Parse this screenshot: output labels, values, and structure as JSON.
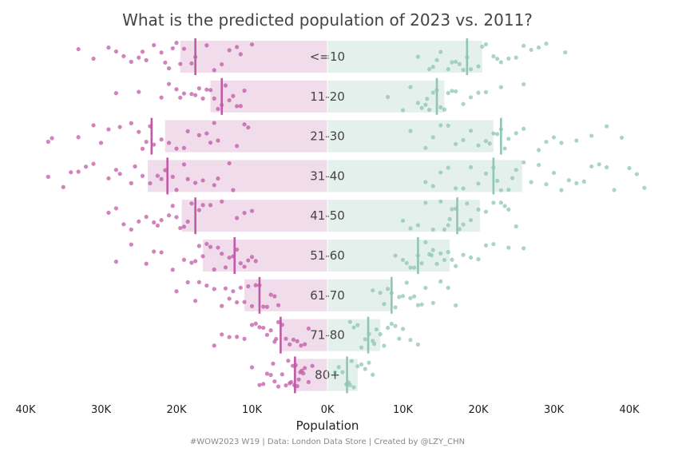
{
  "chart_data": {
    "type": "bar",
    "title": "What is the predicted population of 2023 vs. 2011?",
    "xlabel": "Population",
    "caption": "#WOW2023 W19 | Data: London Data Store | Created by @LZY_CHN",
    "xlim": [
      -40000,
      40000
    ],
    "xticks": [
      -40000,
      -30000,
      -20000,
      -10000,
      0,
      10000,
      20000,
      30000,
      40000
    ],
    "xtick_labels": [
      "40K",
      "30K",
      "20K",
      "10K",
      "0K",
      "10K",
      "20K",
      "30K",
      "40K"
    ],
    "categories": [
      "<=10",
      "11-20",
      "21-30",
      "31-40",
      "41-50",
      "51-60",
      "61-70",
      "71-80",
      "80+"
    ],
    "series": [
      {
        "side": "left",
        "color": "#c05aa5",
        "bar_color": "#f0dcea",
        "bar_values": [
          19500,
          15500,
          21500,
          23800,
          19300,
          16500,
          11000,
          6200,
          4500
        ],
        "median_values": [
          17500,
          14000,
          23300,
          21200,
          17500,
          12300,
          9000,
          6200,
          4300
        ],
        "points": [
          [
            29000,
            33000,
            31000,
            27000,
            25000,
            24000,
            22000,
            21000,
            20000,
            19000,
            18000,
            17500,
            16000,
            14000,
            13000,
            11500,
            10000,
            28000,
            26000,
            23000,
            21500,
            20500,
            15000,
            12000,
            24500,
            19500
          ],
          [
            28000,
            25000,
            22000,
            20000,
            19000,
            18000,
            17000,
            16000,
            15500,
            15000,
            14500,
            14000,
            13000,
            12500,
            12000,
            11500,
            11000,
            21000,
            19500,
            17500,
            16500,
            13500
          ],
          [
            37000,
            36500,
            33000,
            31000,
            29000,
            27500,
            26000,
            25000,
            24000,
            23500,
            23000,
            22000,
            21000,
            20000,
            18500,
            17000,
            16000,
            15500,
            15000,
            14500,
            12000,
            11000,
            10500,
            30000,
            24500,
            19000
          ],
          [
            37000,
            34000,
            33000,
            32000,
            31000,
            29000,
            27500,
            26000,
            25500,
            24500,
            23500,
            22500,
            21500,
            20500,
            19000,
            18500,
            17500,
            16500,
            15000,
            14500,
            13000,
            12500,
            35000,
            28000,
            22000,
            20000
          ],
          [
            29000,
            28000,
            26000,
            25000,
            24000,
            23000,
            22000,
            21000,
            20500,
            20000,
            19500,
            19000,
            18000,
            17000,
            16500,
            14000,
            12000,
            11000,
            10000,
            27000,
            22500,
            18500,
            15500
          ],
          [
            28000,
            26000,
            24000,
            22000,
            20500,
            19000,
            18000,
            17500,
            17000,
            16000,
            15500,
            15000,
            14500,
            14000,
            13500,
            13000,
            12500,
            12000,
            11500,
            11000,
            10500,
            10000,
            9500,
            23000,
            16500
          ],
          [
            20000,
            18500,
            17000,
            16000,
            15000,
            14000,
            13000,
            12500,
            12000,
            11500,
            11000,
            10500,
            10000,
            9500,
            9000,
            8500,
            8000,
            7500,
            7000,
            6500,
            17500,
            13500
          ],
          [
            15000,
            14000,
            13000,
            11000,
            10000,
            9500,
            9000,
            8500,
            8000,
            7500,
            7000,
            6500,
            6000,
            5500,
            5000,
            4500,
            4000,
            3500,
            3000,
            2500,
            12000,
            6800
          ],
          [
            10000,
            9000,
            8500,
            8000,
            7500,
            7000,
            6500,
            6000,
            5500,
            5000,
            4800,
            4600,
            4400,
            4200,
            4000,
            3800,
            3600,
            3400,
            3200,
            3000,
            2500,
            2000,
            7200,
            5200
          ]
        ]
      },
      {
        "side": "right",
        "color": "#8fc5b5",
        "bar_color": "#e3f0ec",
        "bar_values": [
          20500,
          15500,
          22000,
          25800,
          20200,
          16200,
          8500,
          7000,
          4000
        ],
        "median_values": [
          18500,
          14500,
          23000,
          22000,
          17200,
          12000,
          8500,
          5400,
          2600
        ],
        "points": [
          [
            12000,
            13500,
            14000,
            14500,
            15000,
            16000,
            17000,
            17500,
            18000,
            18500,
            19000,
            20000,
            21000,
            22000,
            22500,
            23000,
            24000,
            25000,
            26000,
            27000,
            28000,
            29000,
            31500,
            16500,
            20500
          ],
          [
            8000,
            10000,
            11000,
            12000,
            12500,
            13000,
            13500,
            14000,
            14500,
            15000,
            15500,
            16000,
            16500,
            17000,
            18000,
            19000,
            20000,
            21000,
            23000,
            26000,
            13200
          ],
          [
            11000,
            13000,
            14000,
            15000,
            16000,
            17000,
            18000,
            19000,
            20000,
            21000,
            21500,
            22000,
            22500,
            23000,
            24000,
            25000,
            26000,
            28000,
            29000,
            30000,
            31000,
            33000,
            35000,
            37000,
            39000,
            23500
          ],
          [
            13000,
            14000,
            15000,
            16000,
            17000,
            18000,
            19000,
            20000,
            21000,
            22000,
            22500,
            23000,
            24000,
            25000,
            26000,
            27000,
            28000,
            29000,
            30000,
            31000,
            32000,
            33000,
            34000,
            35000,
            36000,
            37000,
            38000,
            40000,
            41000,
            42000,
            24500
          ],
          [
            10000,
            11000,
            12000,
            13000,
            14000,
            15000,
            15500,
            16000,
            16500,
            17000,
            17500,
            18000,
            18500,
            19000,
            20000,
            21000,
            22000,
            23000,
            23500,
            24000,
            25000,
            16200
          ],
          [
            9000,
            10000,
            10500,
            11000,
            11500,
            12000,
            12500,
            13000,
            13500,
            14000,
            14500,
            15000,
            15500,
            16000,
            16500,
            17000,
            18000,
            19000,
            20000,
            21000,
            22000,
            24000,
            26000,
            13800
          ],
          [
            6000,
            7000,
            7500,
            8000,
            8500,
            9000,
            9500,
            10000,
            10500,
            11000,
            11500,
            12000,
            13000,
            14000,
            15000,
            16000,
            17000,
            12500
          ],
          [
            3000,
            3500,
            4000,
            4500,
            5000,
            5500,
            6000,
            6500,
            7000,
            7500,
            8000,
            8500,
            9000,
            9500,
            10000,
            11000,
            12000,
            6200
          ],
          [
            1000,
            1500,
            2000,
            2500,
            3000,
            3500,
            4000,
            4500,
            5000,
            5500,
            6000,
            2800,
            3200
          ]
        ]
      }
    ]
  }
}
